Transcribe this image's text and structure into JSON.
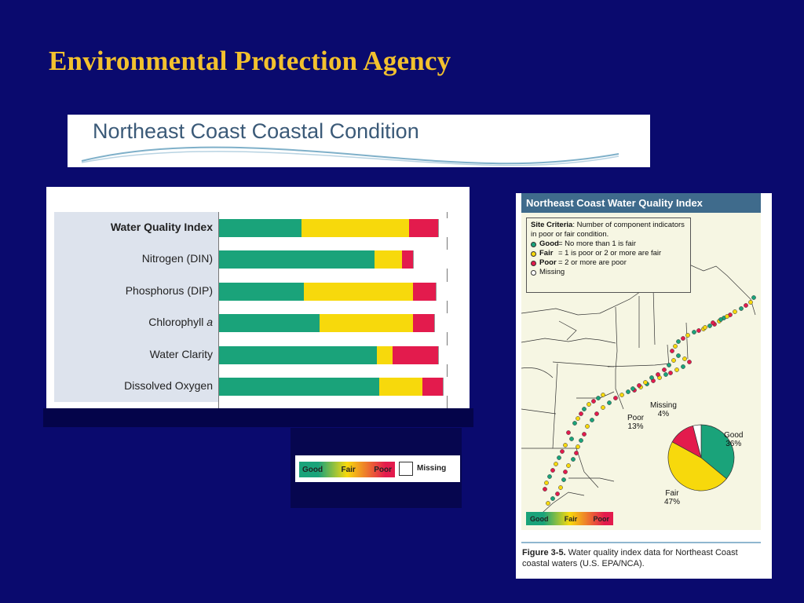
{
  "slide": {
    "title": "Environmental Protection Agency"
  },
  "banner": {
    "title": "Northeast Coast Coastal Condition"
  },
  "bar_chart": {
    "rows": [
      {
        "label": "Water Quality Index",
        "bold": true
      },
      {
        "label": "Nitrogen (DIN)",
        "bold": false
      },
      {
        "label": "Phosphorus (DIP)",
        "bold": false
      },
      {
        "label": "Chlorophyll a",
        "bold": false
      },
      {
        "label": "Water Clarity",
        "bold": false
      },
      {
        "label": "Dissolved Oxygen",
        "bold": false
      }
    ],
    "colors": {
      "good": "#1aa37a",
      "fair": "#f7d90c",
      "poor": "#e31b4d",
      "missing": "#ffffff"
    },
    "legend": {
      "good": "Good",
      "fair": "Fair",
      "poor": "Poor",
      "missing": "Missing"
    }
  },
  "chart_data": {
    "type": "bar",
    "stacked": true,
    "orientation": "horizontal",
    "categories": [
      "Water Quality Index",
      "Nitrogen (DIN)",
      "Phosphorus (DIP)",
      "Chlorophyll a",
      "Water Clarity",
      "Dissolved Oxygen"
    ],
    "series": [
      {
        "name": "Good",
        "values": [
          36,
          68,
          37,
          44,
          69,
          70
        ]
      },
      {
        "name": "Fair",
        "values": [
          47,
          12,
          48,
          41,
          7,
          19
        ]
      },
      {
        "name": "Poor",
        "values": [
          13,
          5,
          10,
          9,
          20,
          9
        ]
      },
      {
        "name": "Missing",
        "values": [
          4,
          15,
          5,
          6,
          4,
          2
        ]
      }
    ]
  },
  "map_figure": {
    "header": "Northeast Coast Water Quality Index",
    "criteria_title": "Site Criteria",
    "criteria_desc": ": Number of component indicators in poor or fair condition.",
    "criteria": [
      {
        "label": "Good",
        "desc": "=  No more than 1 is fair",
        "color": "#1aa37a"
      },
      {
        "label": "Fair",
        "desc": "=  1 is poor or 2 or more are fair",
        "color": "#f7d90c"
      },
      {
        "label": "Poor",
        "desc": "=  2 or more are poor",
        "color": "#e31b4d"
      },
      {
        "label": "Missing",
        "desc": "",
        "color": "#ffffff"
      }
    ],
    "pie": [
      {
        "label": "Good",
        "pct": "36%",
        "value": 36,
        "color": "#1aa37a"
      },
      {
        "label": "Fair",
        "pct": "47%",
        "value": 47,
        "color": "#f7d90c"
      },
      {
        "label": "Poor",
        "pct": "13%",
        "value": 13,
        "color": "#e31b4d"
      },
      {
        "label": "Missing",
        "pct": "4%",
        "value": 4,
        "color": "#ffffff"
      }
    ],
    "legend": {
      "good": "Good",
      "fair": "Fair",
      "poor": "Poor"
    },
    "caption_label": "Figure 3-5.",
    "caption_text": " Water quality index data for Northeast Coast coastal waters (U.S. EPA/NCA)."
  }
}
